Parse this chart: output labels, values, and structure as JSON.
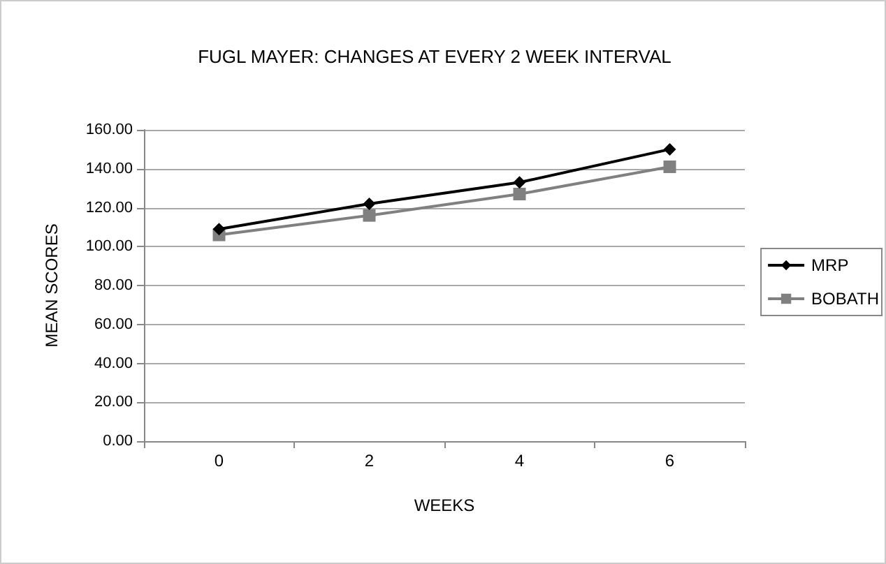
{
  "chart_data": {
    "type": "line",
    "title": "FUGL MAYER: CHANGES AT EVERY 2 WEEK INTERVAL",
    "xlabel": "WEEKS",
    "ylabel": "MEAN SCORES",
    "categories": [
      "0",
      "2",
      "4",
      "6"
    ],
    "series": [
      {
        "name": "MRP",
        "color": "#000000",
        "marker": "diamond",
        "values": [
          109,
          122,
          133,
          150
        ]
      },
      {
        "name": "BOBATH",
        "color": "#808080",
        "marker": "square",
        "values": [
          106,
          116,
          127,
          141
        ]
      }
    ],
    "ylim": [
      0,
      160
    ],
    "yticks": [
      {
        "value": 0,
        "label": "0.00"
      },
      {
        "value": 20,
        "label": "20.00"
      },
      {
        "value": 40,
        "label": "40.00"
      },
      {
        "value": 60,
        "label": "60.00"
      },
      {
        "value": 80,
        "label": "80.00"
      },
      {
        "value": 100,
        "label": "100.00"
      },
      {
        "value": 120,
        "label": "120.00"
      },
      {
        "value": 140,
        "label": "140.00"
      },
      {
        "value": 160,
        "label": "160.00"
      }
    ],
    "grid": "y",
    "legend": "right",
    "line_style": "solid"
  }
}
